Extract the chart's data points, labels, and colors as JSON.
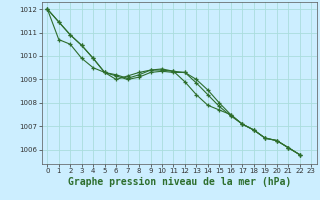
{
  "title": "Graphe pression niveau de la mer (hPa)",
  "background_color": "#cceeff",
  "grid_color": "#aadddd",
  "line_color": "#2d6e2d",
  "xlim": [
    -0.5,
    23.5
  ],
  "ylim": [
    1005.4,
    1012.3
  ],
  "yticks": [
    1006,
    1007,
    1008,
    1009,
    1010,
    1011,
    1012
  ],
  "xticks": [
    0,
    1,
    2,
    3,
    4,
    5,
    6,
    7,
    8,
    9,
    10,
    11,
    12,
    13,
    14,
    15,
    16,
    17,
    18,
    19,
    20,
    21,
    22,
    23
  ],
  "series1": [
    1012.0,
    1011.45,
    1010.9,
    1010.45,
    1009.9,
    1009.3,
    1009.15,
    1009.0,
    1009.1,
    1009.3,
    1009.35,
    1009.3,
    1009.3,
    1008.85,
    1008.35,
    1007.85,
    1007.45,
    1007.1,
    1006.85,
    1006.5,
    1006.4,
    1006.1,
    1005.8
  ],
  "series2": [
    1012.0,
    1010.7,
    1010.5,
    1009.9,
    1009.5,
    1009.3,
    1009.2,
    1009.05,
    1009.2,
    1009.4,
    1009.4,
    1009.35,
    1008.9,
    1008.35,
    1007.9,
    1007.7,
    1007.5,
    1007.1,
    1006.85,
    1006.5,
    1006.4,
    1006.1,
    1005.8
  ],
  "series3": [
    1012.0,
    1011.45,
    1010.9,
    1010.45,
    1009.9,
    1009.3,
    1009.0,
    1009.15,
    1009.3,
    1009.4,
    1009.45,
    1009.35,
    1009.3,
    1009.0,
    1008.55,
    1008.0,
    1007.5,
    1007.1,
    1006.85,
    1006.5,
    1006.4,
    1006.1,
    1005.8
  ],
  "marker": "+",
  "markersize": 3,
  "markeredgewidth": 0.9,
  "linewidth": 0.8,
  "title_fontsize": 7,
  "tick_fontsize": 5
}
